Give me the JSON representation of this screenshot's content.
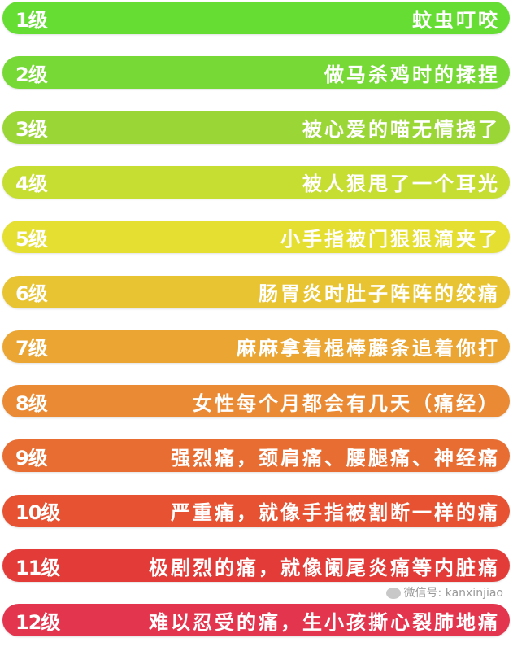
{
  "levels": [
    {
      "level": "1级",
      "desc": "蚊虫叮咬",
      "color": "#66dd33"
    },
    {
      "level": "2级",
      "desc": "做马杀鸡时的揉捏",
      "color": "#77d935"
    },
    {
      "level": "3级",
      "desc": "被心爱的喵无情挠了",
      "color": "#9ad636"
    },
    {
      "level": "4级",
      "desc": "被人狠甩了一个耳光",
      "color": "#c6dd32"
    },
    {
      "level": "5级",
      "desc": "小手指被门狠狠滴夹了",
      "color": "#e4df30"
    },
    {
      "level": "6级",
      "desc": "肠胃炎时肚子阵阵的绞痛",
      "color": "#e8c432"
    },
    {
      "level": "7级",
      "desc": "麻麻拿着棍棒藤条追着你打",
      "color": "#eaa532"
    },
    {
      "level": "8级",
      "desc": "女性每个月都会有几天（痛经）",
      "color": "#ea8a34"
    },
    {
      "level": "9级",
      "desc": "强烈痛，颈肩痛、腰腿痛、神经痛",
      "color": "#e86d32"
    },
    {
      "level": "10级",
      "desc": "严重痛，就像手指被割断一样的痛",
      "color": "#e65232"
    },
    {
      "level": "11级",
      "desc": "极剧烈的痛，就像阑尾炎痛等内脏痛",
      "color": "#e33c38"
    },
    {
      "level": "12级",
      "desc": "难以忍受的痛，生小孩撕心裂肺地痛",
      "color": "#e4354f"
    }
  ],
  "watermark": "微信号: kanxinjiao"
}
